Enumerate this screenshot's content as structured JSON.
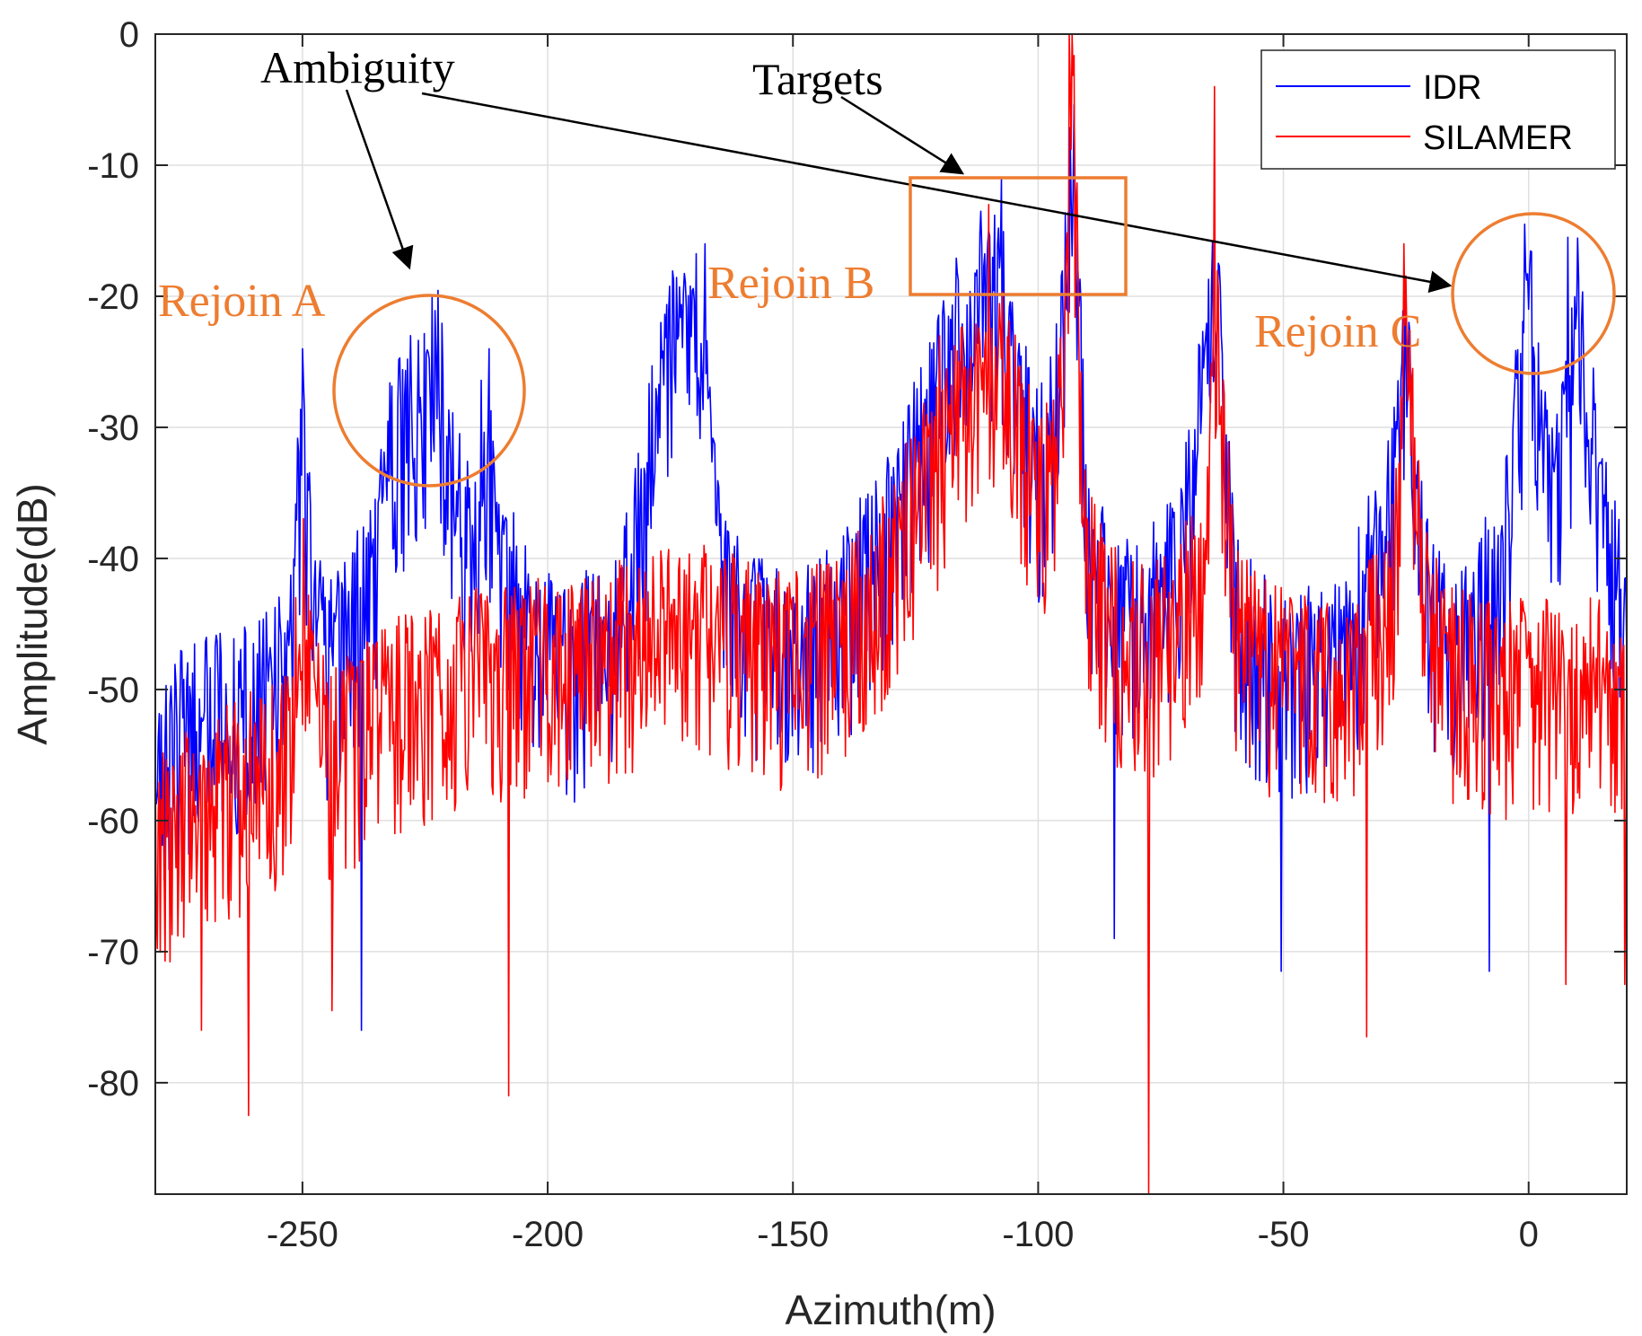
{
  "chart_data": {
    "type": "line",
    "title": "",
    "xlabel": "Azimuth(m)",
    "ylabel": "Amplitude(dB)",
    "xlim": [
      -280,
      20
    ],
    "ylim": [
      -88.5,
      0
    ],
    "xticks": [
      -250,
      -200,
      -150,
      -100,
      -50,
      0
    ],
    "yticks": [
      0,
      -10,
      -20,
      -30,
      -40,
      -50,
      -60,
      -70,
      -80
    ],
    "grid": true,
    "legend": {
      "placement": "top-right",
      "entries": [
        "IDR",
        "SILAMER"
      ]
    },
    "series": [
      {
        "name": "IDR",
        "color": "#0000FF",
        "noise_sigma": 6,
        "noise_jitter": 11,
        "x": [
          -280,
          -275,
          -270,
          -265,
          -260,
          -255,
          -252,
          -250,
          -248,
          -245,
          -240,
          -235,
          -232,
          -228,
          -225,
          -223,
          -220,
          -215,
          -213,
          -210,
          -205,
          -200,
          -195,
          -190,
          -185,
          -180,
          -178,
          -175,
          -172,
          -170,
          -168,
          -165,
          -160,
          -155,
          -150,
          -145,
          -140,
          -135,
          -130,
          -125,
          -120,
          -118,
          -115,
          -112,
          -110,
          -108,
          -105,
          -100,
          -97,
          -95,
          -93,
          -90,
          -85,
          -80,
          -75,
          -70,
          -66,
          -64,
          -62,
          -60,
          -55,
          -50,
          -45,
          -40,
          -35,
          -30,
          -27,
          -25,
          -23,
          -20,
          -15,
          -10,
          -5,
          -2,
          0,
          2,
          5,
          8,
          10,
          12,
          15,
          20
        ],
        "y": [
          -55,
          -53,
          -52,
          -51,
          -50,
          -49,
          -42,
          -30,
          -41,
          -48,
          -45,
          -40,
          -32,
          -29,
          -28,
          -23,
          -33,
          -40,
          -29,
          -40,
          -44,
          -47,
          -48,
          -46,
          -44,
          -34,
          -29,
          -24,
          -23,
          -20,
          -27,
          -40,
          -45,
          -46,
          -47,
          -46,
          -44,
          -40,
          -38,
          -32,
          -27,
          -22,
          -22,
          -18,
          -20,
          -18,
          -26,
          -33,
          -30,
          -22,
          -8,
          -38,
          -43,
          -44,
          -42,
          -37,
          -26,
          -16,
          -30,
          -43,
          -47,
          -48,
          -48,
          -47,
          -44,
          -37,
          -33,
          -24,
          -35,
          -44,
          -46,
          -44,
          -38,
          -28,
          -20,
          -28,
          -34,
          -30,
          -21,
          -28,
          -36,
          -46
        ]
      },
      {
        "name": "SILAMER",
        "color": "#FF0000",
        "noise_sigma": 6,
        "noise_jitter": 11,
        "x": [
          -280,
          -275,
          -270,
          -265,
          -260,
          -255,
          -252,
          -250,
          -248,
          -245,
          -240,
          -235,
          -230,
          -225,
          -220,
          -215,
          -210,
          -205,
          -200,
          -195,
          -190,
          -185,
          -180,
          -175,
          -170,
          -165,
          -160,
          -155,
          -150,
          -145,
          -140,
          -135,
          -130,
          -125,
          -120,
          -118,
          -115,
          -112,
          -110,
          -108,
          -105,
          -100,
          -97,
          -95,
          -93,
          -91,
          -90,
          -85,
          -80,
          -75,
          -70,
          -66,
          -64,
          -62,
          -60,
          -55,
          -50,
          -45,
          -40,
          -35,
          -30,
          -27,
          -25,
          -23,
          -20,
          -15,
          -10,
          -5,
          0,
          5,
          10,
          15,
          20
        ],
        "y": [
          -61,
          -59,
          -58,
          -57,
          -56,
          -55,
          -52,
          -42,
          -50,
          -54,
          -53,
          -51,
          -50,
          -50,
          -49,
          -48,
          -48,
          -48,
          -47,
          -47,
          -47,
          -46,
          -45,
          -45,
          -44,
          -45,
          -46,
          -47,
          -47,
          -46,
          -45,
          -42,
          -40,
          -35,
          -32,
          -27,
          -28,
          -25,
          -25,
          -24,
          -28,
          -35,
          -33,
          -27,
          -2,
          -35,
          -40,
          -45,
          -46,
          -46,
          -43,
          -40,
          -20,
          -33,
          -44,
          -47,
          -48,
          -49,
          -49,
          -48,
          -44,
          -39,
          -21,
          -36,
          -45,
          -48,
          -49,
          -49,
          -49,
          -49,
          -49,
          -49,
          -51
        ]
      }
    ],
    "spikes": [
      {
        "series": "SILAMER",
        "x": -93.7,
        "y": 0
      },
      {
        "series": "SILAMER",
        "x": -64,
        "y": -4
      },
      {
        "series": "SILAMER",
        "x": -110,
        "y": -13
      },
      {
        "series": "IDR",
        "x": -107.5,
        "y": -11
      },
      {
        "series": "SILAMER",
        "x": -120,
        "y": -23
      },
      {
        "series": "SILAMER",
        "x": -25.5,
        "y": -16
      },
      {
        "series": "IDR",
        "x": -0.8,
        "y": -14.5
      },
      {
        "series": "IDR",
        "x": 8,
        "y": -15.5
      },
      {
        "series": "IDR",
        "x": -223.5,
        "y": -20
      },
      {
        "series": "IDR",
        "x": -228,
        "y": -23
      },
      {
        "series": "IDR",
        "x": -212,
        "y": -24
      },
      {
        "series": "IDR",
        "x": -250,
        "y": -24
      },
      {
        "series": "IDR",
        "x": -168,
        "y": -16
      },
      {
        "series": "IDR",
        "x": -177,
        "y": -22
      },
      {
        "series": "SILAMER",
        "x": -77.5,
        "y": -88.5
      },
      {
        "series": "SILAMER",
        "x": -261,
        "y": -82.5
      },
      {
        "series": "SILAMER",
        "x": -208,
        "y": -81
      },
      {
        "series": "IDR",
        "x": -238,
        "y": -76
      },
      {
        "series": "SILAMER",
        "x": -33,
        "y": -76.5
      },
      {
        "series": "SILAMER",
        "x": -270.5,
        "y": -76
      },
      {
        "series": "SILAMER",
        "x": -244,
        "y": -74.5
      },
      {
        "series": "IDR",
        "x": -50.5,
        "y": -71.5
      },
      {
        "series": "IDR",
        "x": -8,
        "y": -71.5
      },
      {
        "series": "SILAMER",
        "x": 7.5,
        "y": -72.5
      },
      {
        "series": "IDR",
        "x": -84.5,
        "y": -69
      },
      {
        "series": "SILAMER",
        "x": 19.5,
        "y": -72.5
      }
    ],
    "annotations": {
      "ambiguity": "Ambiguity",
      "targets": "Targets",
      "region_a": "Rejoin A",
      "region_b": "Rejoin B",
      "region_c": "Rejoin C"
    }
  },
  "colors": {
    "annotation_orange": "#ED7D31",
    "grid": "#DFDFDF",
    "axis": "#262626"
  }
}
